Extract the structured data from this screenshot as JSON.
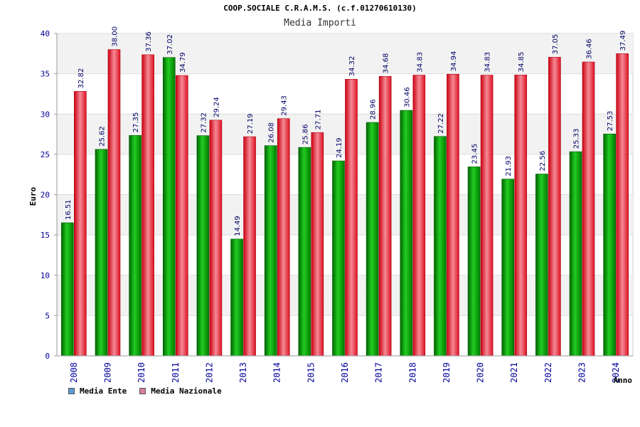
{
  "chart_data": {
    "type": "bar",
    "title": "COOP.SOCIALE C.R.A.M.S. (c.f.01270610130)",
    "subtitle": "Media Importi",
    "xlabel": "Anno",
    "ylabel": "Euro",
    "ylim": [
      0,
      40
    ],
    "yticks": [
      0,
      5,
      10,
      15,
      20,
      25,
      30,
      35,
      40
    ],
    "grid": true,
    "legend_position": "bottom-left",
    "categories": [
      "2008",
      "2009",
      "2010",
      "2011",
      "2012",
      "2013",
      "2014",
      "2015",
      "2016",
      "2017",
      "2018",
      "2019",
      "2020",
      "2021",
      "2022",
      "2023",
      "2024"
    ],
    "series": [
      {
        "name": "Media Ente",
        "color": "#00aa00",
        "legend_color": "#5b9bd5",
        "values": [
          16.51,
          25.62,
          27.35,
          37.02,
          27.32,
          14.49,
          26.08,
          25.86,
          24.19,
          28.96,
          30.46,
          27.22,
          23.45,
          21.93,
          22.56,
          25.33,
          27.53
        ],
        "labels": [
          "16.51",
          "25.62",
          "27.35",
          "37.02",
          "27.32",
          "14.49",
          "26.08",
          "25.86",
          "24.19",
          "28.96",
          "30.46",
          "27.22",
          "23.45",
          "21.93",
          "22.56",
          "25.33",
          "27.53"
        ]
      },
      {
        "name": "Media Nazionale",
        "color": "#ee2233",
        "legend_color": "#d97fa0",
        "values": [
          32.82,
          38.0,
          37.36,
          34.79,
          29.24,
          27.19,
          29.43,
          27.71,
          34.32,
          34.68,
          34.83,
          34.94,
          34.83,
          34.85,
          37.05,
          36.46,
          37.49
        ],
        "labels": [
          "32.82",
          "38.00",
          "37.36",
          "34.79",
          "29.24",
          "27.19",
          "29.43",
          "27.71",
          "34.32",
          "34.68",
          "34.83",
          "34.94",
          "34.83",
          "34.85",
          "37.05",
          "36.46",
          "37.49"
        ]
      }
    ]
  }
}
